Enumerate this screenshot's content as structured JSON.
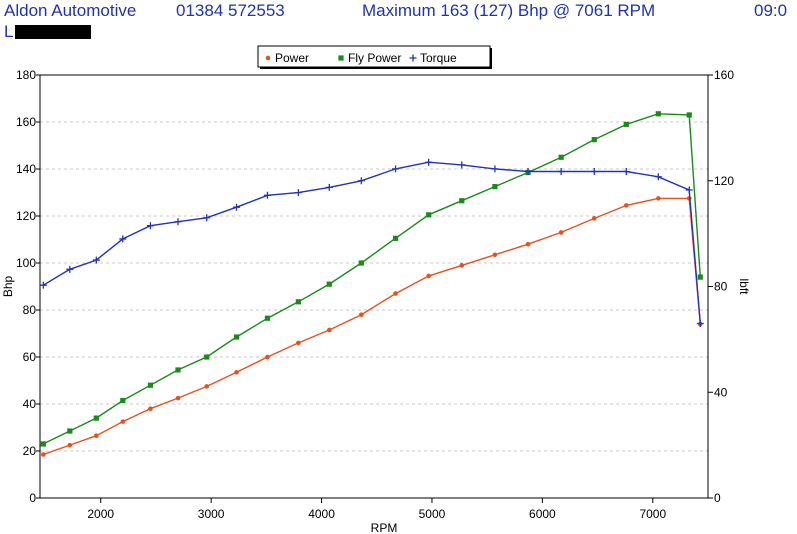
{
  "header": {
    "company": "Aldon Automotive",
    "phone": "01384 572553",
    "maximum": "Maximum 163 (127) Bhp @ 7061 RPM",
    "time": "09:0",
    "line2": "L"
  },
  "colors": {
    "header_text": "#2233aa",
    "power": "#e8501e",
    "fly_power": "#1a8a1a",
    "torque": "#2233bb"
  },
  "chart_data": {
    "type": "line",
    "xlabel": "RPM",
    "ylabel_left": "Bhp",
    "ylabel_right": "lbft",
    "xlim": [
      1450,
      7500
    ],
    "ylim_left": [
      0,
      180
    ],
    "ylim_right": [
      0,
      160
    ],
    "x_ticks": [
      2000,
      3000,
      4000,
      5000,
      6000,
      7000
    ],
    "y_ticks_left": [
      0,
      20,
      40,
      60,
      80,
      100,
      120,
      140,
      160,
      180
    ],
    "y_ticks_right": [
      0,
      40,
      80,
      120,
      160
    ],
    "grid": "horizontal dashed",
    "legend": {
      "placement": "top-center",
      "entries": [
        "Power",
        "Fly Power",
        "Torque"
      ]
    },
    "series": [
      {
        "name": "Power",
        "axis": "left",
        "marker": "dot",
        "points": [
          [
            1480,
            18.5
          ],
          [
            1720,
            22.5
          ],
          [
            1960,
            26.5
          ],
          [
            2200,
            32.5
          ],
          [
            2450,
            38
          ],
          [
            2700,
            42.5
          ],
          [
            2960,
            47.5
          ],
          [
            3230,
            53.5
          ],
          [
            3510,
            60
          ],
          [
            3790,
            66
          ],
          [
            4070,
            71.5
          ],
          [
            4360,
            78
          ],
          [
            4670,
            87
          ],
          [
            4970,
            94.5
          ],
          [
            5270,
            99
          ],
          [
            5570,
            103.5
          ],
          [
            5870,
            108
          ],
          [
            6170,
            113
          ],
          [
            6470,
            119
          ],
          [
            6760,
            124.5
          ],
          [
            7050,
            127.5
          ],
          [
            7330,
            127.5
          ],
          [
            7430,
            74
          ]
        ]
      },
      {
        "name": "Fly Power",
        "axis": "left",
        "marker": "square",
        "points": [
          [
            1480,
            23
          ],
          [
            1720,
            28.5
          ],
          [
            1960,
            34
          ],
          [
            2200,
            41.5
          ],
          [
            2450,
            48
          ],
          [
            2700,
            54.5
          ],
          [
            2960,
            60
          ],
          [
            3230,
            68.5
          ],
          [
            3510,
            76.5
          ],
          [
            3790,
            83.5
          ],
          [
            4070,
            91
          ],
          [
            4360,
            100
          ],
          [
            4670,
            110.5
          ],
          [
            4970,
            120.5
          ],
          [
            5270,
            126.5
          ],
          [
            5570,
            132.5
          ],
          [
            5870,
            138.5
          ],
          [
            6170,
            145
          ],
          [
            6470,
            152.5
          ],
          [
            6760,
            159
          ],
          [
            7050,
            163.5
          ],
          [
            7330,
            163
          ],
          [
            7430,
            94
          ]
        ]
      },
      {
        "name": "Torque",
        "axis": "right",
        "marker": "plus",
        "points": [
          [
            1480,
            80.5
          ],
          [
            1720,
            86.5
          ],
          [
            1960,
            90
          ],
          [
            2200,
            98
          ],
          [
            2450,
            103
          ],
          [
            2700,
            104.5
          ],
          [
            2960,
            106
          ],
          [
            3230,
            110
          ],
          [
            3510,
            114.5
          ],
          [
            3790,
            115.5
          ],
          [
            4070,
            117.5
          ],
          [
            4360,
            120
          ],
          [
            4670,
            124.5
          ],
          [
            4970,
            127
          ],
          [
            5270,
            126
          ],
          [
            5570,
            124.5
          ],
          [
            5870,
            123.5
          ],
          [
            6170,
            123.5
          ],
          [
            6470,
            123.5
          ],
          [
            6760,
            123.5
          ],
          [
            7050,
            121.5
          ],
          [
            7330,
            116.5
          ],
          [
            7430,
            66
          ]
        ]
      }
    ]
  }
}
